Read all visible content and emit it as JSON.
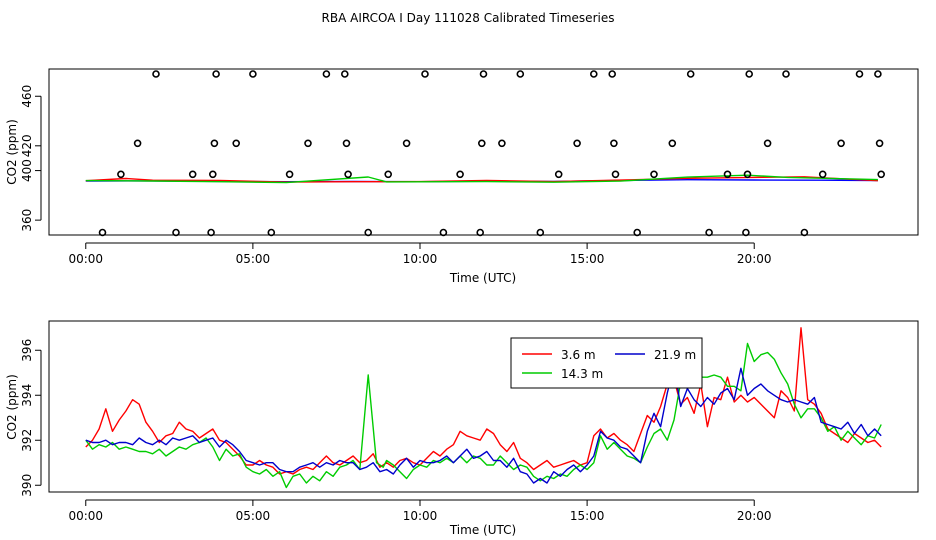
{
  "title": "RBA AIRCOA I  Day 111028  Calibrated Timeseries",
  "chart_data": [
    {
      "type": "scatter",
      "xlabel": "Time (UTC)",
      "ylabel": "CO2 (ppm)",
      "xlim": [
        -1.1,
        24.9
      ],
      "ylim": [
        348,
        482
      ],
      "x_ticks": [
        0,
        5,
        10,
        15,
        20
      ],
      "x_tick_labels": [
        "00:00",
        "05:00",
        "10:00",
        "15:00",
        "20:00"
      ],
      "y_ticks": [
        360,
        400,
        420,
        460
      ],
      "y_tick_labels": [
        "360",
        "400",
        "420",
        "460"
      ],
      "grid": false,
      "legend": "none",
      "series": [
        {
          "color": "#0000ff",
          "x": [
            0,
            2,
            4,
            6,
            8,
            10,
            12,
            14,
            16,
            18,
            20,
            22,
            23.7
          ],
          "y": [
            391.5,
            391.7,
            391.3,
            391.0,
            391.2,
            391.0,
            391.4,
            391.2,
            392.0,
            392.6,
            392.4,
            392.2,
            392.0
          ]
        },
        {
          "color": "#ff0000",
          "x": [
            0,
            1.2,
            2,
            4,
            6,
            8,
            10,
            12,
            14,
            16,
            18,
            21.5,
            23.7
          ],
          "y": [
            391.8,
            393.6,
            392.2,
            392.0,
            390.7,
            391.0,
            391.1,
            392.0,
            391.1,
            392.3,
            393.8,
            395.0,
            391.8
          ]
        },
        {
          "color": "#00cc00",
          "x": [
            0,
            2,
            4,
            6,
            8.45,
            9,
            12,
            14,
            16,
            18,
            19.8,
            21,
            23.7
          ],
          "y": [
            391.9,
            391.6,
            391.0,
            390.3,
            394.8,
            390.9,
            391.1,
            390.6,
            391.5,
            394.7,
            396.3,
            394.5,
            392.7
          ]
        }
      ],
      "points": {
        "x": [
          0.5,
          1.05,
          1.55,
          2.1,
          2.7,
          3.2,
          3.75,
          3.8,
          3.85,
          3.9,
          4.5,
          5.0,
          5.55,
          6.1,
          6.65,
          7.2,
          7.75,
          7.8,
          7.85,
          8.45,
          9.05,
          9.6,
          10.15,
          10.7,
          11.2,
          11.8,
          11.85,
          11.9,
          12.45,
          13.0,
          13.6,
          14.15,
          14.7,
          15.2,
          15.75,
          15.8,
          15.85,
          16.5,
          17.0,
          17.55,
          18.1,
          18.65,
          19.2,
          19.75,
          19.8,
          19.85,
          20.4,
          20.95,
          21.5,
          22.05,
          22.6,
          23.15,
          23.7,
          23.75,
          23.8
        ],
        "y": [
          350,
          397,
          422,
          478,
          350,
          397,
          350,
          397,
          422,
          478,
          422,
          478,
          350,
          397,
          422,
          478,
          478,
          422,
          397,
          350,
          397,
          422,
          478,
          350,
          397,
          350,
          422,
          478,
          422,
          478,
          350,
          397,
          422,
          478,
          478,
          422,
          397,
          350,
          397,
          422,
          478,
          350,
          397,
          350,
          397,
          478,
          422,
          478,
          350,
          397,
          422,
          478,
          478,
          422,
          397
        ]
      }
    },
    {
      "type": "line",
      "xlabel": "Time (UTC)",
      "ylabel": "CO2 (ppm)",
      "xlim": [
        -1.1,
        24.9
      ],
      "ylim": [
        389.7,
        397.3
      ],
      "x_ticks": [
        0,
        5,
        10,
        15,
        20
      ],
      "x_tick_labels": [
        "00:00",
        "05:00",
        "10:00",
        "15:00",
        "20:00"
      ],
      "y_ticks": [
        390,
        392,
        394,
        396
      ],
      "y_tick_labels": [
        "390",
        "392",
        "394",
        "396"
      ],
      "grid": false,
      "legend": "top-center",
      "series": [
        {
          "name": "3.6 m",
          "color": "#ff0000",
          "x": [
            0.0,
            0.2,
            0.4,
            0.6,
            0.8,
            1.0,
            1.2,
            1.4,
            1.6,
            1.8,
            2.0,
            2.2,
            2.4,
            2.6,
            2.8,
            3.0,
            3.2,
            3.4,
            3.6,
            3.8,
            4.0,
            4.2,
            4.4,
            4.6,
            4.8,
            5.0,
            5.2,
            5.4,
            5.6,
            5.8,
            6.0,
            6.2,
            6.4,
            6.6,
            6.8,
            7.0,
            7.2,
            7.4,
            7.6,
            7.8,
            8.0,
            8.2,
            8.4,
            8.6,
            8.8,
            9.0,
            9.2,
            9.4,
            9.6,
            9.8,
            10.0,
            10.2,
            10.4,
            10.6,
            10.8,
            11.0,
            11.2,
            11.4,
            11.6,
            11.8,
            12.0,
            12.2,
            12.4,
            12.6,
            12.8,
            13.0,
            13.2,
            13.4,
            13.6,
            13.8,
            14.0,
            14.2,
            14.4,
            14.6,
            14.8,
            15.0,
            15.2,
            15.4,
            15.6,
            15.8,
            16.0,
            16.2,
            16.4,
            16.6,
            16.8,
            17.0,
            17.2,
            17.4,
            17.6,
            17.8,
            18.0,
            18.2,
            18.4,
            18.6,
            18.8,
            19.0,
            19.2,
            19.4,
            19.6,
            19.8,
            20.0,
            20.2,
            20.4,
            20.6,
            20.8,
            21.0,
            21.2,
            21.4,
            21.6,
            21.8,
            22.0,
            22.2,
            22.4,
            22.6,
            22.8,
            23.0,
            23.2,
            23.4,
            23.6,
            23.8
          ],
          "y": [
            391.7,
            392.0,
            392.5,
            393.4,
            392.4,
            392.9,
            393.3,
            393.8,
            393.6,
            392.8,
            392.4,
            391.9,
            392.2,
            392.3,
            392.8,
            392.5,
            392.4,
            392.1,
            392.3,
            392.5,
            392.0,
            391.9,
            391.6,
            391.3,
            390.9,
            390.9,
            391.1,
            390.9,
            390.8,
            390.5,
            390.6,
            390.5,
            390.7,
            390.8,
            390.7,
            391.0,
            391.3,
            391.0,
            390.9,
            391.1,
            391.3,
            391.0,
            391.1,
            391.4,
            390.8,
            391.0,
            390.8,
            391.1,
            391.2,
            391.0,
            390.9,
            391.2,
            391.5,
            391.3,
            391.6,
            391.8,
            392.4,
            392.2,
            392.1,
            392.0,
            392.5,
            392.3,
            391.8,
            391.5,
            391.9,
            391.2,
            391.0,
            390.7,
            390.9,
            391.1,
            390.8,
            390.9,
            391.0,
            391.1,
            390.9,
            391.0,
            392.2,
            392.5,
            392.1,
            392.3,
            392.0,
            391.8,
            391.5,
            392.3,
            393.1,
            392.8,
            393.5,
            394.5,
            394.7,
            393.6,
            393.9,
            393.2,
            394.5,
            392.6,
            393.9,
            393.8,
            394.8,
            393.7,
            394.0,
            393.7,
            393.9,
            393.6,
            393.3,
            393.0,
            394.2,
            393.9,
            393.3,
            397.0,
            393.8,
            393.6,
            393.2,
            392.5,
            392.3,
            392.1,
            391.9,
            392.3,
            392.1,
            391.9,
            392.0,
            391.7
          ]
        },
        {
          "name": "14.3 m",
          "color": "#00cc00",
          "x": [
            0.0,
            0.2,
            0.4,
            0.6,
            0.8,
            1.0,
            1.2,
            1.4,
            1.6,
            1.8,
            2.0,
            2.2,
            2.4,
            2.6,
            2.8,
            3.0,
            3.2,
            3.4,
            3.6,
            3.8,
            4.0,
            4.2,
            4.4,
            4.6,
            4.8,
            5.0,
            5.2,
            5.4,
            5.6,
            5.8,
            6.0,
            6.2,
            6.4,
            6.6,
            6.8,
            7.0,
            7.2,
            7.4,
            7.6,
            7.8,
            8.0,
            8.2,
            8.45,
            8.7,
            8.9,
            9.0,
            9.2,
            9.4,
            9.6,
            9.8,
            10.0,
            10.2,
            10.4,
            10.6,
            10.8,
            11.0,
            11.2,
            11.4,
            11.6,
            11.8,
            12.0,
            12.2,
            12.4,
            12.6,
            12.8,
            13.0,
            13.2,
            13.4,
            13.6,
            13.8,
            14.0,
            14.2,
            14.4,
            14.6,
            14.8,
            15.0,
            15.2,
            15.4,
            15.6,
            15.8,
            16.0,
            16.2,
            16.4,
            16.6,
            16.8,
            17.0,
            17.2,
            17.4,
            17.6,
            17.8,
            18.0,
            18.2,
            18.4,
            18.6,
            18.8,
            19.0,
            19.2,
            19.4,
            19.6,
            19.8,
            20.0,
            20.2,
            20.4,
            20.6,
            20.8,
            21.0,
            21.2,
            21.4,
            21.6,
            21.8,
            22.0,
            22.2,
            22.4,
            22.6,
            22.8,
            23.0,
            23.2,
            23.4,
            23.6,
            23.8
          ],
          "y": [
            392.0,
            391.6,
            391.8,
            391.7,
            391.9,
            391.6,
            391.7,
            391.6,
            391.5,
            391.5,
            391.4,
            391.6,
            391.3,
            391.5,
            391.7,
            391.6,
            391.8,
            391.9,
            392.1,
            391.7,
            391.1,
            391.6,
            391.3,
            391.4,
            390.8,
            390.6,
            390.5,
            390.7,
            390.4,
            390.6,
            389.9,
            390.4,
            390.5,
            390.1,
            390.4,
            390.2,
            390.6,
            390.4,
            390.8,
            390.9,
            391.1,
            390.7,
            394.9,
            391.0,
            390.8,
            391.1,
            390.9,
            390.6,
            390.3,
            390.7,
            390.9,
            390.8,
            391.1,
            391.0,
            391.2,
            391.0,
            391.3,
            391.0,
            391.3,
            391.2,
            390.9,
            390.9,
            391.3,
            391.0,
            390.7,
            390.9,
            390.8,
            390.4,
            390.2,
            390.4,
            390.3,
            390.5,
            390.4,
            390.7,
            390.9,
            390.7,
            391.0,
            392.2,
            391.6,
            391.9,
            391.6,
            391.3,
            391.2,
            391.0,
            391.7,
            392.3,
            392.5,
            392.0,
            392.9,
            394.6,
            394.7,
            394.8,
            394.8,
            394.8,
            394.9,
            394.8,
            394.4,
            394.4,
            394.2,
            396.3,
            395.5,
            395.8,
            395.9,
            395.6,
            395.0,
            394.5,
            393.6,
            393.0,
            393.4,
            393.4,
            393.0,
            392.4,
            392.6,
            392.0,
            392.4,
            392.1,
            391.8,
            392.2,
            392.1,
            392.7
          ]
        },
        {
          "name": "21.9 m",
          "color": "#0000cc",
          "x": [
            0.0,
            0.2,
            0.4,
            0.6,
            0.8,
            1.0,
            1.2,
            1.4,
            1.6,
            1.8,
            2.0,
            2.2,
            2.4,
            2.6,
            2.8,
            3.0,
            3.2,
            3.4,
            3.6,
            3.8,
            4.0,
            4.2,
            4.4,
            4.6,
            4.8,
            5.0,
            5.2,
            5.4,
            5.6,
            5.8,
            6.0,
            6.2,
            6.4,
            6.6,
            6.8,
            7.0,
            7.2,
            7.4,
            7.6,
            7.8,
            8.0,
            8.2,
            8.4,
            8.6,
            8.8,
            9.0,
            9.2,
            9.4,
            9.6,
            9.8,
            10.0,
            10.2,
            10.4,
            10.6,
            10.8,
            11.0,
            11.2,
            11.4,
            11.6,
            11.8,
            12.0,
            12.2,
            12.4,
            12.6,
            12.8,
            13.0,
            13.2,
            13.4,
            13.6,
            13.8,
            14.0,
            14.2,
            14.4,
            14.6,
            14.8,
            15.0,
            15.2,
            15.4,
            15.6,
            15.8,
            16.0,
            16.2,
            16.4,
            16.6,
            16.8,
            17.0,
            17.2,
            17.4,
            17.6,
            17.8,
            18.0,
            18.2,
            18.4,
            18.6,
            18.8,
            19.0,
            19.2,
            19.4,
            19.6,
            19.8,
            20.0,
            20.2,
            20.4,
            20.6,
            20.8,
            21.0,
            21.2,
            21.4,
            21.6,
            21.8,
            22.0,
            22.2,
            22.4,
            22.6,
            22.8,
            23.0,
            23.2,
            23.4,
            23.6,
            23.8
          ],
          "y": [
            392.0,
            391.9,
            391.9,
            392.0,
            391.8,
            391.9,
            391.9,
            391.8,
            392.1,
            391.9,
            391.8,
            392.0,
            391.8,
            392.1,
            392.0,
            392.1,
            392.2,
            391.9,
            392.0,
            392.1,
            391.7,
            392.0,
            391.8,
            391.5,
            391.1,
            391.0,
            390.9,
            391.0,
            391.0,
            390.7,
            390.6,
            390.6,
            390.8,
            390.9,
            391.0,
            390.8,
            391.0,
            390.9,
            391.1,
            391.0,
            391.0,
            390.7,
            390.8,
            391.0,
            390.6,
            390.7,
            390.5,
            390.9,
            391.2,
            390.8,
            391.1,
            391.0,
            391.0,
            391.1,
            391.3,
            391.0,
            391.3,
            391.6,
            391.2,
            391.3,
            391.5,
            391.1,
            391.1,
            390.8,
            391.2,
            390.6,
            390.5,
            390.1,
            390.3,
            390.1,
            390.6,
            390.4,
            390.7,
            390.9,
            390.6,
            390.9,
            391.3,
            392.4,
            392.1,
            392.0,
            391.7,
            391.6,
            391.3,
            391.0,
            392.4,
            393.2,
            392.6,
            394.1,
            395.3,
            393.5,
            394.3,
            393.8,
            393.5,
            393.9,
            393.6,
            394.1,
            394.3,
            393.8,
            395.2,
            394.0,
            394.3,
            394.5,
            394.2,
            394.0,
            393.8,
            393.7,
            393.8,
            393.7,
            393.6,
            393.9,
            392.8,
            392.7,
            392.6,
            392.5,
            392.8,
            392.3,
            392.7,
            392.2,
            392.5,
            392.2
          ]
        }
      ]
    }
  ]
}
